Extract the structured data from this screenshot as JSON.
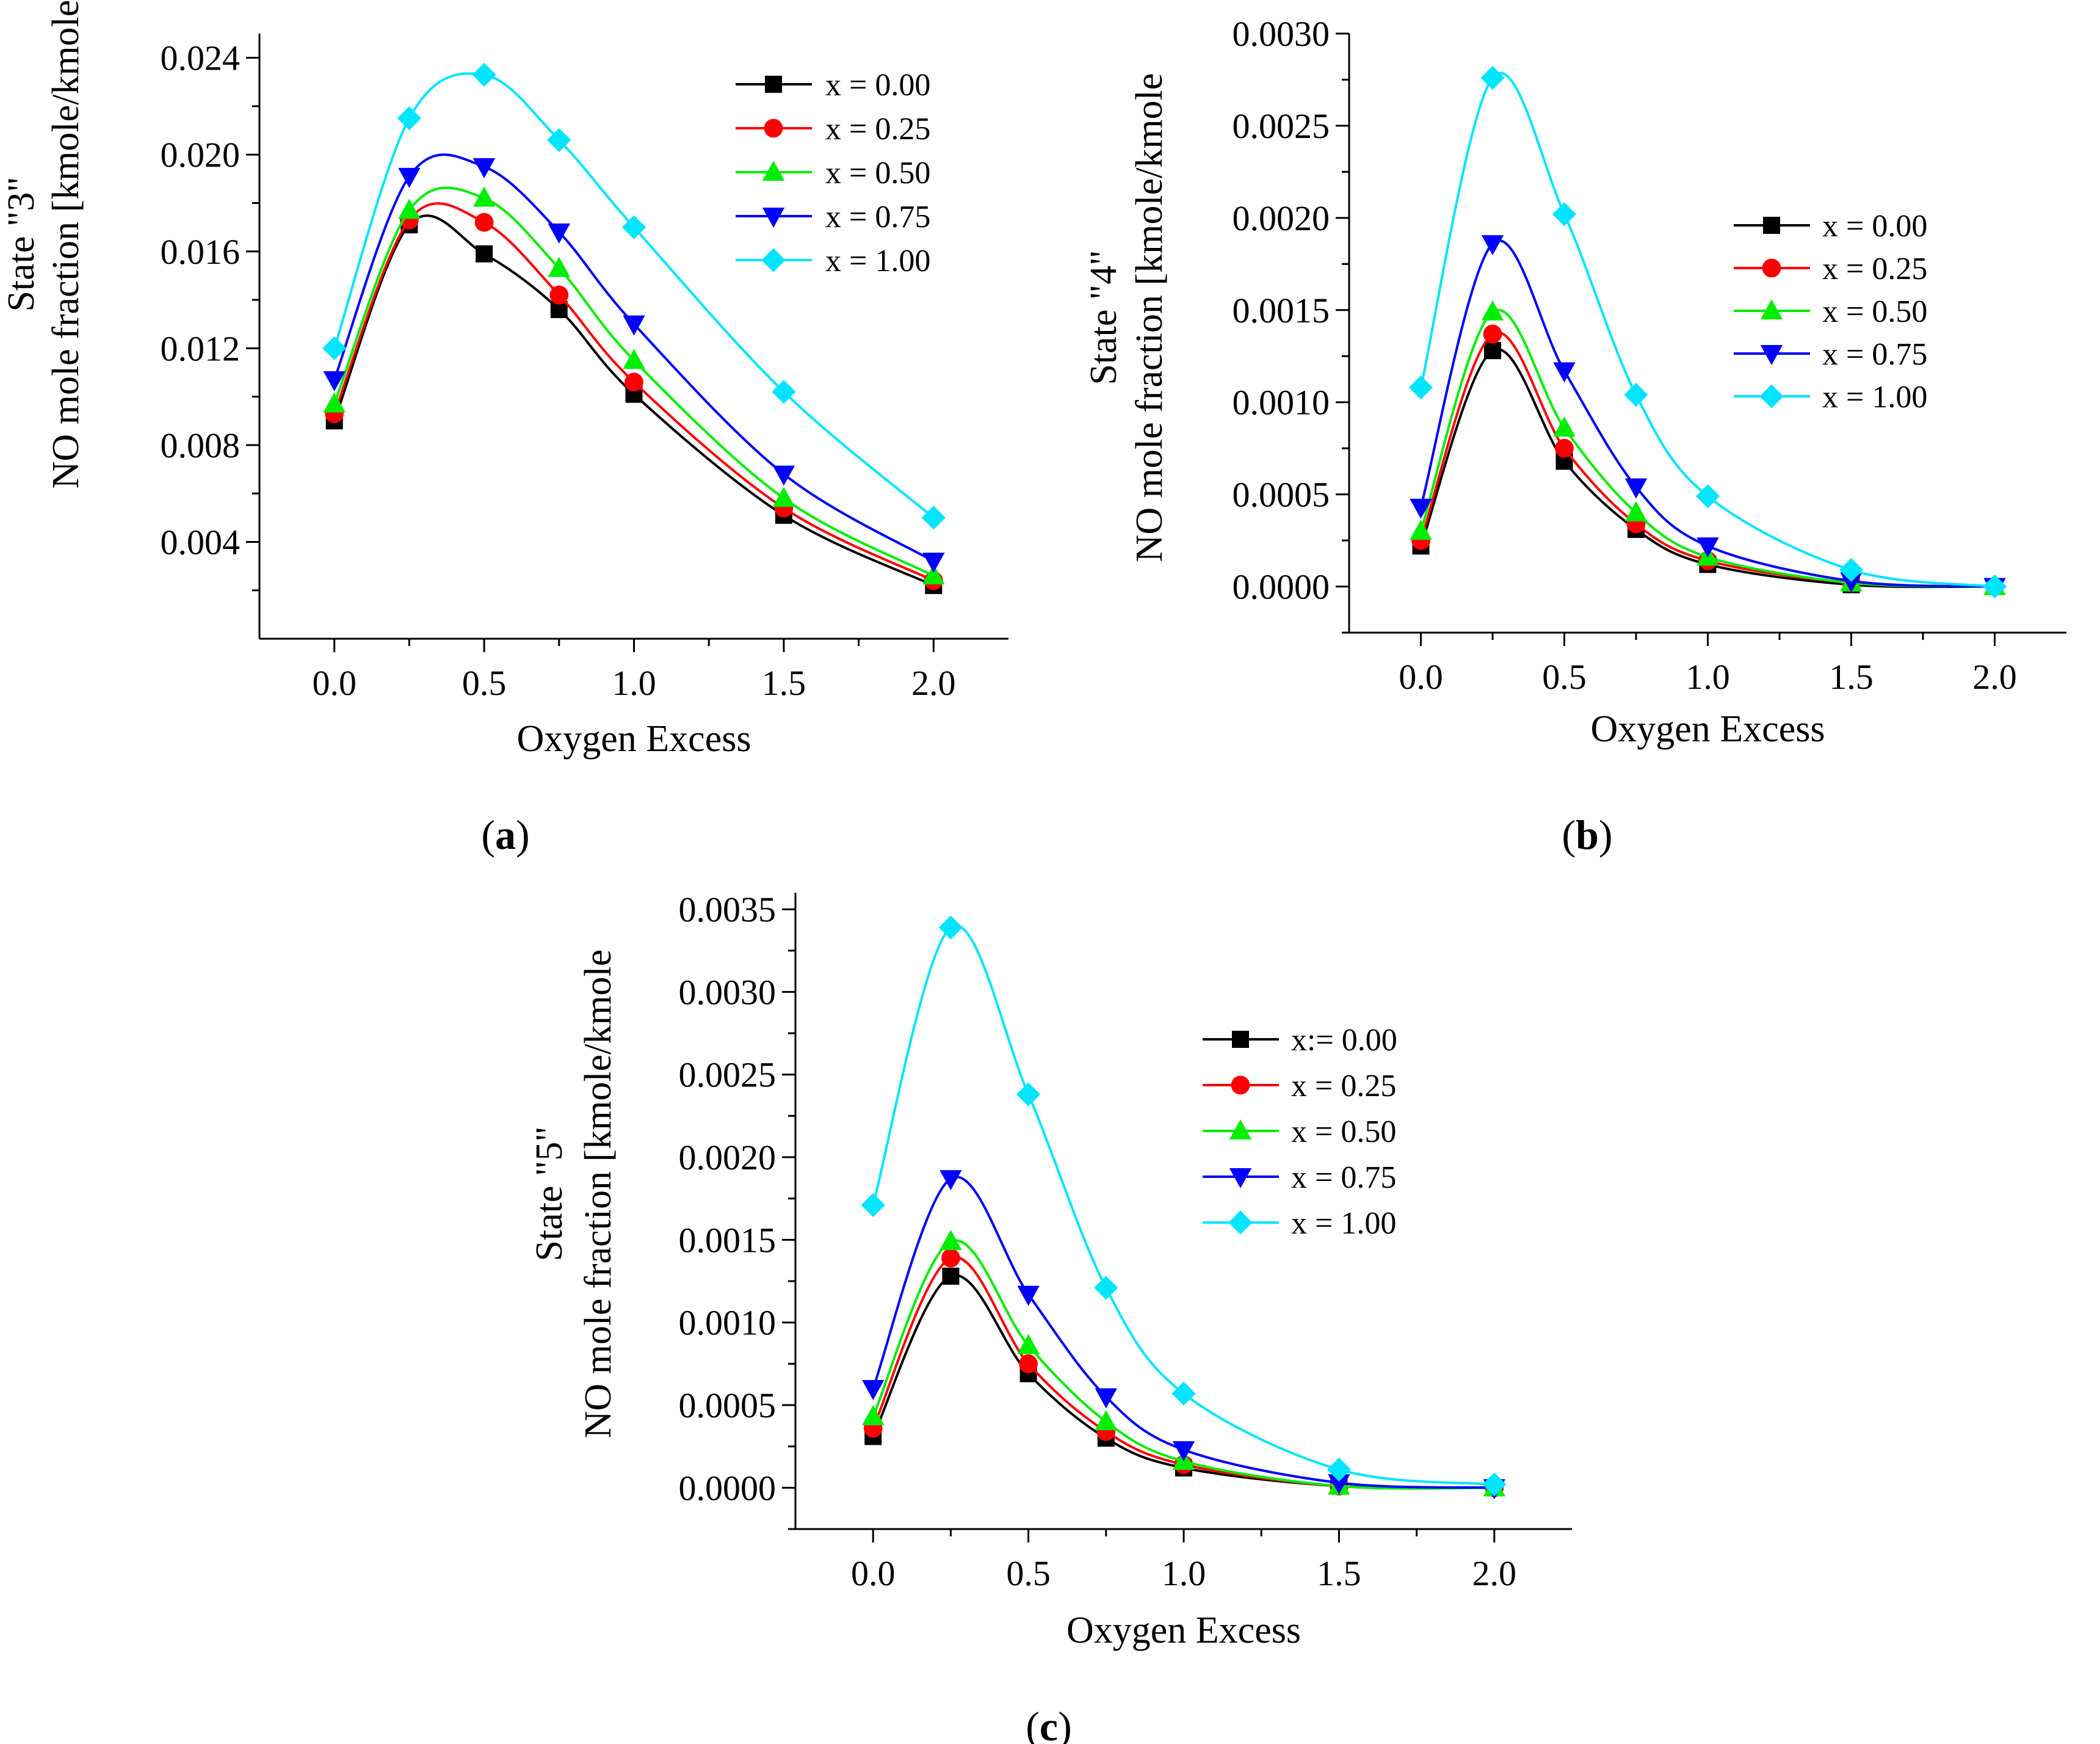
{
  "chart_data": [
    {
      "id": "a",
      "type": "line",
      "caption_letter": "a",
      "xlabel": "Oxygen Excess",
      "ylabel_line1": "State \"3\"",
      "ylabel_line2": "NO mole fraction [kmole/kmole",
      "xlim": [
        -0.25,
        2.25
      ],
      "ylim": [
        0.0,
        0.025
      ],
      "xticks": [
        0.0,
        0.5,
        1.0,
        1.5,
        2.0
      ],
      "xtick_labels": [
        "0.0",
        "0.5",
        "1.0",
        "1.5",
        "2.0"
      ],
      "yticks": [
        0.004,
        0.008,
        0.012,
        0.016,
        0.02,
        0.024
      ],
      "ytick_labels": [
        "0.004",
        "0.008",
        "0.012",
        "0.016",
        "0.020",
        "0.024"
      ],
      "legend_position": "top-right",
      "x": [
        0.0,
        0.25,
        0.5,
        0.75,
        1.0,
        1.5,
        2.0
      ],
      "series": [
        {
          "name": "x = 0.00",
          "marker": "square",
          "color": "#000000",
          "values": [
            0.009,
            0.0171,
            0.0159,
            0.0136,
            0.0101,
            0.0051,
            0.0022
          ]
        },
        {
          "name": "x = 0.25",
          "marker": "circle",
          "color": "#ff0000",
          "values": [
            0.0093,
            0.0173,
            0.0172,
            0.0142,
            0.0106,
            0.0054,
            0.0024
          ]
        },
        {
          "name": "x = 0.50",
          "marker": "triangle-up",
          "color": "#00ee00",
          "values": [
            0.0097,
            0.0177,
            0.0182,
            0.0153,
            0.0115,
            0.0058,
            0.0026
          ]
        },
        {
          "name": "x = 0.75",
          "marker": "triangle-down",
          "color": "#0000ff",
          "values": [
            0.0107,
            0.0191,
            0.0195,
            0.0168,
            0.013,
            0.0068,
            0.0032
          ]
        },
        {
          "name": "x = 1.00",
          "marker": "diamond",
          "color": "#00e5ff",
          "values": [
            0.012,
            0.0215,
            0.0233,
            0.0206,
            0.017,
            0.0102,
            0.005
          ]
        }
      ]
    },
    {
      "id": "b",
      "type": "line",
      "caption_letter": "b",
      "xlabel": "Oxygen Excess",
      "ylabel_line1": "State \"4\"",
      "ylabel_line2": "NO mole fraction [kmole/kmole",
      "xlim": [
        -0.25,
        2.25
      ],
      "ylim": [
        -0.00025,
        0.003
      ],
      "xticks": [
        0.0,
        0.5,
        1.0,
        1.5,
        2.0
      ],
      "xtick_labels": [
        "0.0",
        "0.5",
        "1.0",
        "1.5",
        "2.0"
      ],
      "yticks": [
        0.0,
        0.0005,
        0.001,
        0.0015,
        0.002,
        0.0025,
        0.003
      ],
      "ytick_labels": [
        "0.0000",
        "0.0005",
        "0.0010",
        "0.0015",
        "0.0020",
        "0.0025",
        "0.0030"
      ],
      "legend_position": "top-right",
      "x": [
        0.0,
        0.25,
        0.5,
        0.75,
        1.0,
        1.5,
        2.0
      ],
      "series": [
        {
          "name": "x = 0.00",
          "marker": "square",
          "color": "#000000",
          "values": [
            0.00022,
            0.00128,
            0.00068,
            0.00031,
            0.00012,
            1e-05,
            0.0
          ]
        },
        {
          "name": "x = 0.25",
          "marker": "circle",
          "color": "#ff0000",
          "values": [
            0.00025,
            0.00137,
            0.00075,
            0.00034,
            0.00014,
            2e-05,
            0.0
          ]
        },
        {
          "name": "x = 0.50",
          "marker": "triangle-up",
          "color": "#00ee00",
          "values": [
            0.0003,
            0.00149,
            0.00086,
            0.0004,
            0.00016,
            2e-05,
            0.0
          ]
        },
        {
          "name": "x = 0.75",
          "marker": "triangle-down",
          "color": "#0000ff",
          "values": [
            0.00043,
            0.00186,
            0.00117,
            0.00054,
            0.00022,
            3e-05,
            0.0
          ]
        },
        {
          "name": "x = 1.00",
          "marker": "diamond",
          "color": "#00e5ff",
          "values": [
            0.00108,
            0.00276,
            0.00202,
            0.00104,
            0.00049,
            9e-05,
            0.0
          ]
        }
      ]
    },
    {
      "id": "c",
      "type": "line",
      "caption_letter": "c",
      "xlabel": "Oxygen Excess",
      "ylabel_line1": "State \"5\"",
      "ylabel_line2": "NO mole fraction [kmole/kmole",
      "xlim": [
        -0.25,
        2.25
      ],
      "ylim": [
        -0.00025,
        0.0036
      ],
      "xticks": [
        0.0,
        0.5,
        1.0,
        1.5,
        2.0
      ],
      "xtick_labels": [
        "0.0",
        "0.5",
        "1.0",
        "1.5",
        "2.0"
      ],
      "yticks": [
        0.0,
        0.0005,
        0.001,
        0.0015,
        0.002,
        0.0025,
        0.003,
        0.0035
      ],
      "ytick_labels": [
        "0.0000",
        "0.0005",
        "0.0010",
        "0.0015",
        "0.0020",
        "0.0025",
        "0.0030",
        "0.0035"
      ],
      "legend_position": "top-right",
      "x": [
        0.0,
        0.25,
        0.5,
        0.75,
        1.0,
        1.5,
        2.0
      ],
      "series": [
        {
          "name": "x:= 0.00",
          "marker": "square",
          "color": "#000000",
          "values": [
            0.00031,
            0.00128,
            0.00069,
            0.0003,
            0.00012,
            1e-05,
            0.0
          ]
        },
        {
          "name": "x = 0.25",
          "marker": "circle",
          "color": "#ff0000",
          "values": [
            0.00036,
            0.00139,
            0.00075,
            0.00034,
            0.00014,
            1e-05,
            0.0
          ]
        },
        {
          "name": "x = 0.50",
          "marker": "triangle-up",
          "color": "#00ee00",
          "values": [
            0.00043,
            0.00149,
            0.00086,
            0.0004,
            0.00016,
            1e-05,
            0.0
          ]
        },
        {
          "name": "x = 0.75",
          "marker": "triangle-down",
          "color": "#0000ff",
          "values": [
            0.0006,
            0.00187,
            0.00117,
            0.00055,
            0.00023,
            3e-05,
            0.0
          ]
        },
        {
          "name": "x = 1.00",
          "marker": "diamond",
          "color": "#00e5ff",
          "values": [
            0.00171,
            0.00339,
            0.00238,
            0.00121,
            0.00057,
            0.00011,
            2e-05
          ]
        }
      ]
    }
  ]
}
